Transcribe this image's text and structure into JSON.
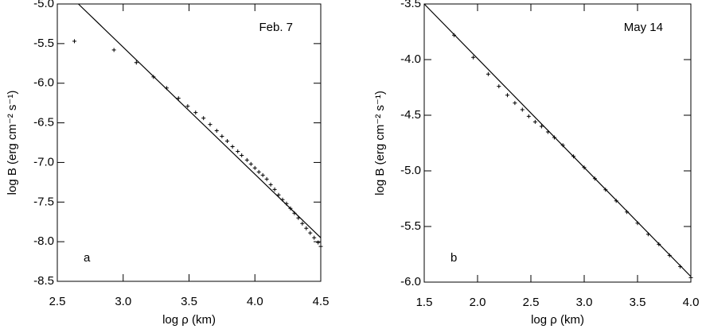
{
  "chart_data": [
    {
      "type": "scatter",
      "annotation": "Feb. 7",
      "panel_label": "a",
      "x_label": "log ρ (km)",
      "y_label": "log B (erg cm⁻² s⁻¹)",
      "xlim": [
        2.5,
        4.5
      ],
      "ylim": [
        -8.5,
        -5.0
      ],
      "xticks": [
        2.5,
        {
          "value": 3.0,
          "label": "3.0"
        },
        3.5,
        {
          "value": 4.0,
          "label": "4.0"
        },
        4.5
      ],
      "yticks": [
        -8.5,
        {
          "value": -8.0,
          "label": "-8.0"
        },
        -7.5,
        {
          "value": -7.0,
          "label": "-7.0"
        },
        -6.5,
        {
          "value": -6.0,
          "label": "-6.0"
        },
        -5.5,
        {
          "value": -5.0,
          "label": "-5.0"
        }
      ],
      "series": [
        {
          "mode": "markers",
          "color": "#000000",
          "x": [
            2.63,
            2.93,
            3.1,
            3.23,
            3.33,
            3.42,
            3.49,
            3.55,
            3.61,
            3.66,
            3.71,
            3.75,
            3.79,
            3.83,
            3.87,
            3.9,
            3.94,
            3.97,
            4.0,
            4.03,
            4.06,
            4.09,
            4.12,
            4.15,
            4.18,
            4.21,
            4.24,
            4.27,
            4.3,
            4.33,
            4.36,
            4.39,
            4.42,
            4.45,
            4.48,
            4.5
          ],
          "values": [
            -5.47,
            -5.58,
            -5.74,
            -5.92,
            -6.06,
            -6.19,
            -6.29,
            -6.37,
            -6.44,
            -6.52,
            -6.6,
            -6.67,
            -6.73,
            -6.8,
            -6.86,
            -6.91,
            -6.97,
            -7.02,
            -7.07,
            -7.12,
            -7.16,
            -7.21,
            -7.28,
            -7.34,
            -7.41,
            -7.47,
            -7.52,
            -7.58,
            -7.64,
            -7.7,
            -7.77,
            -7.83,
            -7.89,
            -7.95,
            -8.01,
            -8.06
          ]
        },
        {
          "mode": "line",
          "color": "#000000",
          "x": [
            2.66,
            4.5
          ],
          "values": [
            -5.0,
            -7.95
          ]
        }
      ]
    },
    {
      "type": "scatter",
      "annotation": "May 14",
      "panel_label": "b",
      "x_label": "log ρ (km)",
      "y_label": "log B (erg cm⁻² s⁻¹)",
      "xlim": [
        1.5,
        4.0
      ],
      "ylim": [
        -6.0,
        -3.5
      ],
      "xticks": [
        1.5,
        {
          "value": 2.0,
          "label": "2.0"
        },
        2.5,
        {
          "value": 3.0,
          "label": "3.0"
        },
        3.5,
        {
          "value": 4.0,
          "label": "4.0"
        }
      ],
      "yticks": [
        {
          "value": -6.0,
          "label": "-6.0"
        },
        -5.5,
        {
          "value": -5.0,
          "label": "-5.0"
        },
        -4.5,
        {
          "value": -4.0,
          "label": "-4.0"
        },
        -3.5
      ],
      "series": [
        {
          "mode": "markers",
          "color": "#000000",
          "x": [
            1.78,
            1.96,
            2.1,
            2.2,
            2.28,
            2.35,
            2.42,
            2.48,
            2.54,
            2.6,
            2.66,
            2.72,
            2.8,
            2.9,
            3.0,
            3.1,
            3.2,
            3.3,
            3.4,
            3.5,
            3.6,
            3.7,
            3.8,
            3.9,
            4.0
          ],
          "values": [
            -3.78,
            -3.98,
            -4.13,
            -4.24,
            -4.32,
            -4.39,
            -4.45,
            -4.51,
            -4.56,
            -4.6,
            -4.65,
            -4.7,
            -4.77,
            -4.87,
            -4.97,
            -5.07,
            -5.17,
            -5.27,
            -5.37,
            -5.47,
            -5.57,
            -5.66,
            -5.76,
            -5.86,
            -5.96
          ]
        },
        {
          "mode": "line",
          "color": "#000000",
          "x": [
            1.5,
            4.0
          ],
          "values": [
            -3.5,
            -5.95
          ]
        }
      ]
    }
  ]
}
